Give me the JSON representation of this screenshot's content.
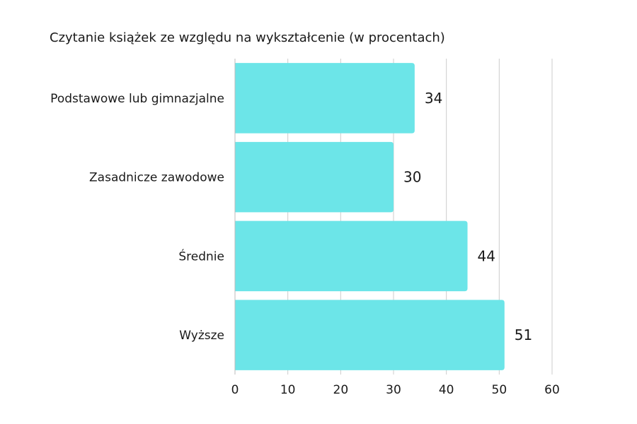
{
  "chart_data": {
    "type": "bar",
    "orientation": "horizontal",
    "title": "Czytanie książek ze względu na wykształcenie (w procentach)",
    "categories": [
      "Podstawowe lub gimnazjalne",
      "Zasadnicze zawodowe",
      "Średnie",
      "Wyższe"
    ],
    "values": [
      34,
      30,
      44,
      51
    ],
    "value_labels": [
      "34",
      "30",
      "44",
      "51"
    ],
    "xlim": [
      0,
      60
    ],
    "xticks": [
      0,
      10,
      20,
      30,
      40,
      50,
      60
    ],
    "xtick_labels": [
      "0",
      "10",
      "20",
      "30",
      "40",
      "50",
      "60"
    ],
    "xlabel": "",
    "ylabel": "",
    "grid": "vertical",
    "legend": "none",
    "bar_color": "#6ce5e8",
    "grid_color": "#cccccc"
  }
}
